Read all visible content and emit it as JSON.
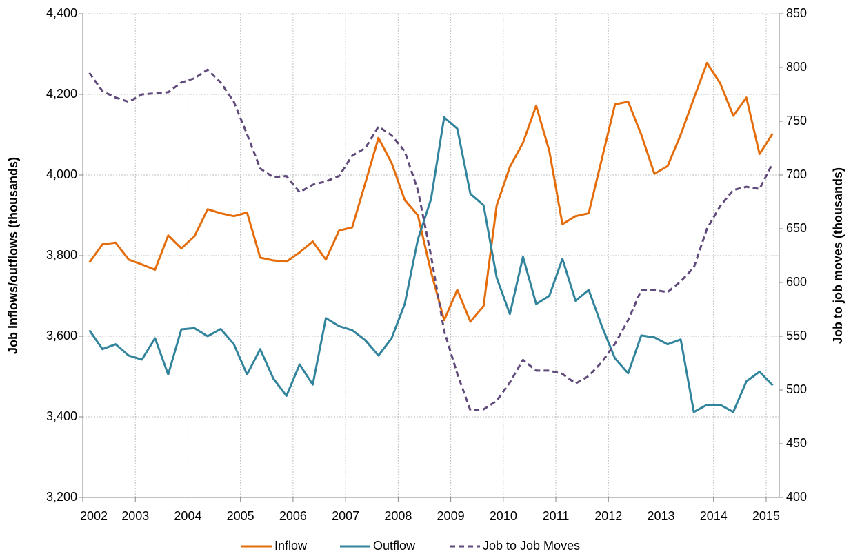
{
  "chart_data": {
    "type": "line",
    "y_label": "Job Inflows/outflows (thousands)",
    "y2_label": "Job to job moves (thousands)",
    "x": [
      2002.125,
      2002.375,
      2002.625,
      2002.875,
      2003.125,
      2003.375,
      2003.625,
      2003.875,
      2004.125,
      2004.375,
      2004.625,
      2004.875,
      2005.125,
      2005.375,
      2005.625,
      2005.875,
      2006.125,
      2006.375,
      2006.625,
      2006.875,
      2007.125,
      2007.375,
      2007.625,
      2007.875,
      2008.125,
      2008.375,
      2008.625,
      2008.875,
      2009.125,
      2009.375,
      2009.625,
      2009.875,
      2010.125,
      2010.375,
      2010.625,
      2010.875,
      2011.125,
      2011.375,
      2011.625,
      2011.875,
      2012.125,
      2012.375,
      2012.625,
      2012.875,
      2013.125,
      2013.375,
      2013.625,
      2013.875,
      2014.125,
      2014.375,
      2014.625,
      2014.875,
      2015.125
    ],
    "xlim": [
      2002,
      2015.25
    ],
    "xticks": [
      2002,
      2003,
      2004,
      2005,
      2006,
      2007,
      2008,
      2009,
      2010,
      2011,
      2012,
      2013,
      2014,
      2015
    ],
    "ylim": [
      3200,
      4400
    ],
    "yticks": [
      {
        "value": 3200,
        "label": "3,200"
      },
      {
        "value": 3400,
        "label": "3,400"
      },
      {
        "value": 3600,
        "label": "3,600"
      },
      {
        "value": 3800,
        "label": "3,800"
      },
      {
        "value": 4000,
        "label": "4,000"
      },
      {
        "value": 4200,
        "label": "4,200"
      },
      {
        "value": 4400,
        "label": "4,400"
      }
    ],
    "y2lim": [
      400,
      850
    ],
    "y2ticks": [
      400,
      450,
      500,
      550,
      600,
      650,
      700,
      750,
      800,
      850
    ],
    "grid": true,
    "legend": "bottom",
    "series": [
      {
        "name": "Inflow",
        "color": "#e46c0a",
        "values": [
          3783,
          3828,
          3832,
          3790,
          3778,
          3765,
          3850,
          3818,
          3848,
          3915,
          3905,
          3898,
          3907,
          3795,
          3788,
          3785,
          3808,
          3835,
          3790,
          3862,
          3870,
          3980,
          4092,
          4030,
          3938,
          3900,
          3760,
          3640,
          3715,
          3636,
          3675,
          3925,
          4020,
          4080,
          4172,
          4060,
          3878,
          3898,
          3905,
          4040,
          4175,
          4182,
          4100,
          4003,
          4022,
          4100,
          4190,
          4278,
          4228,
          4147,
          4192,
          4052,
          4103
        ]
      },
      {
        "name": "Outflow",
        "color": "#31849b",
        "values": [
          3615,
          3568,
          3580,
          3552,
          3542,
          3595,
          3505,
          3617,
          3620,
          3600,
          3618,
          3580,
          3505,
          3568,
          3495,
          3452,
          3530,
          3480,
          3645,
          3625,
          3615,
          3590,
          3552,
          3595,
          3680,
          3840,
          3940,
          4143,
          4115,
          3953,
          3925,
          3745,
          3655,
          3797,
          3680,
          3700,
          3792,
          3688,
          3715,
          3625,
          3545,
          3508,
          3602,
          3597,
          3580,
          3592,
          3412,
          3430,
          3430,
          3412,
          3488,
          3512,
          3478
        ]
      },
      {
        "name": "Job to Job Moves",
        "color": "#604a7b",
        "axis": "y2",
        "dashed": true,
        "values": [
          795,
          778,
          772,
          768,
          775,
          776,
          777,
          786,
          790,
          798,
          786,
          768,
          738,
          706,
          698,
          699,
          684,
          691,
          694,
          699,
          718,
          725,
          745,
          737,
          722,
          686,
          625,
          555,
          515,
          481,
          482,
          490,
          507,
          528,
          518,
          518,
          515,
          506,
          513,
          526,
          543,
          565,
          593,
          593,
          591,
          601,
          614,
          650,
          671,
          686,
          689,
          687,
          711
        ]
      }
    ]
  }
}
